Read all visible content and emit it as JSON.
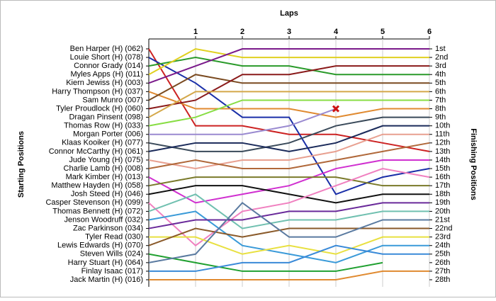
{
  "chart_data": {
    "type": "lap",
    "x_label": "Laps",
    "y_label": "Starting Positions",
    "y2_label": "Finishing Positions",
    "x": [
      0,
      1,
      2,
      3,
      4,
      5,
      6
    ],
    "xlim": [
      0,
      6
    ],
    "xticks": [
      1,
      2,
      3,
      4,
      5,
      6
    ],
    "ylim": [
      1,
      28
    ],
    "yticks": [
      {
        "value": 1,
        "label": "1st"
      },
      {
        "value": 2,
        "label": "2nd"
      },
      {
        "value": 3,
        "label": "3rd"
      },
      {
        "value": 4,
        "label": "4th"
      },
      {
        "value": 5,
        "label": "5th"
      },
      {
        "value": 6,
        "label": "6th"
      },
      {
        "value": 7,
        "label": "7th"
      },
      {
        "value": 8,
        "label": "8th"
      },
      {
        "value": 9,
        "label": "9th"
      },
      {
        "value": 10,
        "label": "10th"
      },
      {
        "value": 11,
        "label": "11th"
      },
      {
        "value": 12,
        "label": "12th"
      },
      {
        "value": 13,
        "label": "13th"
      },
      {
        "value": 14,
        "label": "14th"
      },
      {
        "value": 15,
        "label": "15th"
      },
      {
        "value": 16,
        "label": "16th"
      },
      {
        "value": 17,
        "label": "17th"
      },
      {
        "value": 18,
        "label": "18th"
      },
      {
        "value": 19,
        "label": "19th"
      },
      {
        "value": 20,
        "label": "20th"
      },
      {
        "value": 21,
        "label": "21st"
      },
      {
        "value": 22,
        "label": "22nd"
      },
      {
        "value": 23,
        "label": "23rd"
      },
      {
        "value": 24,
        "label": "24th"
      },
      {
        "value": 25,
        "label": "25th"
      },
      {
        "value": 26,
        "label": "26th"
      },
      {
        "value": 27,
        "label": "27th"
      },
      {
        "value": 28,
        "label": "28th"
      }
    ],
    "series": [
      {
        "name": "Ben Harper (H) (062)",
        "color": "#cc2222",
        "values": [
          1,
          10,
          10,
          11,
          11,
          12,
          13
        ]
      },
      {
        "name": "Louie Short (H) (078)",
        "color": "#1a2fa8",
        "values": [
          2,
          5,
          9,
          9,
          18,
          16,
          15
        ]
      },
      {
        "name": "Connor Grady (014)",
        "color": "#2a9a2a",
        "values": [
          3,
          2,
          3,
          3,
          4,
          4,
          4
        ]
      },
      {
        "name": "Myles Apps (H) (011)",
        "color": "#e0d020",
        "values": [
          4,
          1,
          2,
          2,
          2,
          2,
          2
        ]
      },
      {
        "name": "Kiern Jewiss (H) (003)",
        "color": "#7a1a8a",
        "values": [
          5,
          3,
          1,
          1,
          1,
          1,
          1
        ]
      },
      {
        "name": "Harry Thompson (H) (037)",
        "color": "#e08a30",
        "values": [
          6,
          8,
          8,
          8,
          9,
          8,
          8
        ]
      },
      {
        "name": "Sam Munro (007)",
        "color": "#7a4a20",
        "values": [
          7,
          4,
          5,
          5,
          5,
          5,
          5
        ]
      },
      {
        "name": "Tyler Proudlock (H) (060)",
        "color": "#8a1a1a",
        "values": [
          8,
          7,
          4,
          4,
          3,
          3,
          3
        ]
      },
      {
        "name": "Dragan Pinsent (098)",
        "color": "#d4a84a",
        "values": [
          9,
          6,
          6,
          6,
          6,
          6,
          6
        ]
      },
      {
        "name": "Thomas Row (H) (033)",
        "color": "#88dd44",
        "values": [
          10,
          9,
          7,
          7,
          7,
          7,
          7
        ]
      },
      {
        "name": "Morgan Porter (006)",
        "color": "#9a8ad0",
        "values": [
          11,
          11,
          11,
          10,
          8,
          null,
          null
        ],
        "marker": "x"
      },
      {
        "name": "Klaas Kooiker (H) (077)",
        "color": "#3a4a5a",
        "values": [
          12,
          13,
          13,
          12,
          10,
          9,
          9
        ]
      },
      {
        "name": "Connor McCarthy (H) (061)",
        "color": "#1a2a5a",
        "values": [
          13,
          12,
          12,
          13,
          12,
          10,
          10
        ]
      },
      {
        "name": "Jude Young (H) (075)",
        "color": "#e8a090",
        "values": [
          14,
          15,
          14,
          14,
          13,
          11,
          11
        ]
      },
      {
        "name": "Charlie Lamb (H) (008)",
        "color": "#b0683a",
        "values": [
          15,
          14,
          15,
          15,
          14,
          13,
          12
        ]
      },
      {
        "name": "Mark Kimber (H) (013)",
        "color": "#d030d0",
        "values": [
          16,
          19,
          18,
          17,
          15,
          14,
          14
        ]
      },
      {
        "name": "Matthew Hayden (H) (058)",
        "color": "#7a7a2a",
        "values": [
          17,
          16,
          16,
          16,
          16,
          17,
          17
        ]
      },
      {
        "name": "Josh Steed (H) (046)",
        "color": "#111111",
        "values": [
          18,
          17,
          17,
          18,
          19,
          18,
          18
        ]
      },
      {
        "name": "Casper Stevenson (H) (099)",
        "color": "#f080c0",
        "values": [
          19,
          24,
          20,
          19,
          17,
          15,
          16
        ]
      },
      {
        "name": "Thomas Bennett (H) (072)",
        "color": "#70c0b0",
        "values": [
          20,
          18,
          22,
          21,
          21,
          20,
          20
        ]
      },
      {
        "name": "Jenson Woodruff (032)",
        "color": "#3a9ad8",
        "values": [
          21,
          20,
          24,
          25,
          26,
          24,
          24
        ]
      },
      {
        "name": "Zac Parkinson (034)",
        "color": "#6a2a9a",
        "values": [
          22,
          21,
          21,
          20,
          20,
          19,
          19
        ]
      },
      {
        "name": "Tyler Read (030)",
        "color": "#e8e040",
        "values": [
          23,
          23,
          25,
          24,
          25,
          23,
          23
        ]
      },
      {
        "name": "Lewis Edwards (H) (070)",
        "color": "#8a5a2a",
        "values": [
          24,
          22,
          23,
          22,
          22,
          22,
          22
        ]
      },
      {
        "name": "Steven Wills (024)",
        "color": "#20a030",
        "values": [
          25,
          26,
          27,
          27,
          27,
          26,
          null
        ]
      },
      {
        "name": "Harry Stuart (H) (064)",
        "color": "#5a7aa0",
        "values": [
          26,
          25,
          19,
          23,
          23,
          21,
          21
        ]
      },
      {
        "name": "Finlay Isaac (017)",
        "color": "#3a8ad8",
        "values": [
          27,
          27,
          26,
          26,
          24,
          25,
          25
        ]
      },
      {
        "name": "Jack Martin (H) (016)",
        "color": "#e08a30",
        "values": [
          28,
          28,
          28,
          28,
          28,
          27,
          27
        ]
      }
    ]
  }
}
